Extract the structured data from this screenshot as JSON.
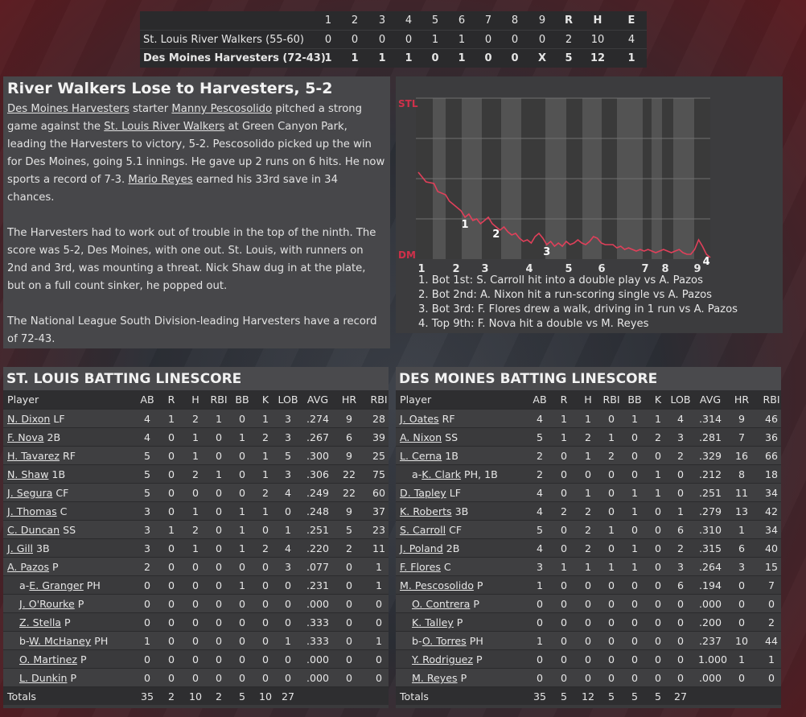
{
  "linescore": {
    "headers": [
      "1",
      "2",
      "3",
      "4",
      "5",
      "6",
      "7",
      "8",
      "9",
      "R",
      "H",
      "E"
    ],
    "teams": [
      {
        "name": "St. Louis River Walkers (55-60)",
        "cells": [
          "0",
          "0",
          "0",
          "0",
          "1",
          "1",
          "0",
          "0",
          "0",
          "2",
          "10",
          "4"
        ]
      },
      {
        "name": "Des Moines Harvesters (72-43)",
        "cells": [
          "1",
          "1",
          "1",
          "1",
          "0",
          "1",
          "0",
          "0",
          "X",
          "5",
          "12",
          "1"
        ]
      }
    ]
  },
  "recap": {
    "headline": "River Walkers Lose to Harvesters, 5-2",
    "p1": [
      {
        "t": "Des Moines Harvesters",
        "link": true
      },
      {
        "t": " starter ",
        "link": false
      },
      {
        "t": "Manny Pescosolido",
        "link": true
      },
      {
        "t": " pitched a strong game against the ",
        "link": false
      },
      {
        "t": "St. Louis River Walkers",
        "link": true
      },
      {
        "t": " at Green Canyon Park, leading the Harvesters to victory, 5-2. Pescosolido picked up the win for Des Moines, going 5.1 innings. He gave up 2 runs on 6 hits. He now sports a record of 7-3. ",
        "link": false
      },
      {
        "t": "Mario Reyes",
        "link": true
      },
      {
        "t": " earned his 33rd save in 34 chances.",
        "link": false
      }
    ],
    "p2": "The Harvesters had to work out of trouble in the top of the ninth. The score was 5-2, Des Moines, with one out. St. Louis, with runners on 2nd and 3rd, was mounting a threat. Nick Shaw dug in at the plate, but on a full count sinker, he popped out.",
    "p3": "The National League South Division-leading Harvesters have a record of 72-43."
  },
  "chart_data": {
    "type": "line",
    "title": "",
    "top_label": "STL",
    "bottom_label": "DM",
    "x_labels": [
      "1",
      "2",
      "3",
      "4",
      "5",
      "6",
      "7",
      "8",
      "9"
    ],
    "ylim": [
      0,
      100
    ],
    "line_color": "#e0405a",
    "points": [
      [
        0,
        54
      ],
      [
        2,
        48
      ],
      [
        4,
        47
      ],
      [
        5,
        42
      ],
      [
        7,
        40
      ],
      [
        8,
        36
      ],
      [
        9,
        34
      ],
      [
        11,
        30
      ],
      [
        12,
        26
      ],
      [
        13,
        28
      ],
      [
        14,
        24
      ],
      [
        15,
        25
      ],
      [
        16,
        22
      ],
      [
        17,
        24
      ],
      [
        18,
        26
      ],
      [
        19,
        22
      ],
      [
        20,
        20
      ],
      [
        21,
        18
      ],
      [
        22,
        20
      ],
      [
        23,
        17
      ],
      [
        24,
        15
      ],
      [
        25,
        16
      ],
      [
        26,
        13
      ],
      [
        27,
        11
      ],
      [
        28,
        12
      ],
      [
        29,
        10
      ],
      [
        30,
        14
      ],
      [
        31,
        16
      ],
      [
        32,
        13
      ],
      [
        33,
        9
      ],
      [
        34,
        11
      ],
      [
        35,
        8
      ],
      [
        36,
        10
      ],
      [
        37,
        8
      ],
      [
        38,
        11
      ],
      [
        39,
        9
      ],
      [
        40,
        10
      ],
      [
        41,
        12
      ],
      [
        42,
        10
      ],
      [
        43,
        9
      ],
      [
        44,
        11
      ],
      [
        45,
        14
      ],
      [
        46,
        13
      ],
      [
        47,
        10
      ],
      [
        48,
        9
      ],
      [
        50,
        9
      ],
      [
        51,
        7
      ],
      [
        52,
        8
      ],
      [
        53,
        6
      ],
      [
        54,
        7
      ],
      [
        55,
        6
      ],
      [
        56,
        5
      ],
      [
        57,
        6
      ],
      [
        58,
        5
      ],
      [
        59,
        6
      ],
      [
        60,
        5
      ],
      [
        61,
        4
      ],
      [
        62,
        5
      ],
      [
        63,
        6
      ],
      [
        64,
        5
      ],
      [
        65,
        4
      ],
      [
        66,
        5
      ],
      [
        67,
        6
      ],
      [
        68,
        4
      ],
      [
        69,
        3
      ],
      [
        70,
        3
      ],
      [
        71,
        6
      ],
      [
        72,
        12
      ],
      [
        73,
        8
      ],
      [
        74,
        3
      ],
      [
        75,
        1
      ]
    ],
    "markers": [
      {
        "label": "1",
        "x": 12
      },
      {
        "label": "2",
        "x": 20
      },
      {
        "label": "3",
        "x": 33
      },
      {
        "label": "4",
        "x": 74
      }
    ],
    "events": [
      "1. Bot 1st: S. Carroll hit into a double play vs A. Pazos",
      "2. Bot 2nd: A. Nixon hit a run-scoring single vs A. Pazos",
      "3. Bot 3rd: F. Flores drew a walk, driving in 1 run vs A. Pazos",
      "4. Top 9th: F. Nova hit a double vs M. Reyes"
    ]
  },
  "stl_batting": {
    "title": "ST. LOUIS BATTING LINESCORE",
    "headers": [
      "Player",
      "AB",
      "R",
      "H",
      "RBI",
      "BB",
      "K",
      "LOB",
      "AVG",
      "HR",
      "RBI"
    ],
    "rows": [
      {
        "prefix": "",
        "name": "N. Dixon",
        "pos": " LF",
        "sub": false,
        "stats": [
          "4",
          "1",
          "2",
          "1",
          "0",
          "1",
          "3",
          ".274",
          "9",
          "28"
        ]
      },
      {
        "prefix": "",
        "name": "F. Nova",
        "pos": " 2B",
        "sub": false,
        "stats": [
          "4",
          "0",
          "1",
          "0",
          "1",
          "2",
          "3",
          ".267",
          "6",
          "39"
        ]
      },
      {
        "prefix": "",
        "name": "H. Tavarez",
        "pos": " RF",
        "sub": false,
        "stats": [
          "5",
          "0",
          "1",
          "0",
          "0",
          "1",
          "5",
          ".300",
          "9",
          "25"
        ]
      },
      {
        "prefix": "",
        "name": "N. Shaw",
        "pos": " 1B",
        "sub": false,
        "stats": [
          "5",
          "0",
          "2",
          "1",
          "0",
          "1",
          "3",
          ".306",
          "22",
          "75"
        ]
      },
      {
        "prefix": "",
        "name": "J. Segura",
        "pos": " CF",
        "sub": false,
        "stats": [
          "5",
          "0",
          "0",
          "0",
          "0",
          "2",
          "4",
          ".249",
          "22",
          "60"
        ]
      },
      {
        "prefix": "",
        "name": "J. Thomas",
        "pos": " C",
        "sub": false,
        "stats": [
          "3",
          "0",
          "1",
          "0",
          "1",
          "1",
          "0",
          ".248",
          "9",
          "37"
        ]
      },
      {
        "prefix": "",
        "name": "C. Duncan",
        "pos": " SS",
        "sub": false,
        "stats": [
          "3",
          "1",
          "2",
          "0",
          "1",
          "0",
          "1",
          ".251",
          "5",
          "23"
        ]
      },
      {
        "prefix": "",
        "name": "J. Gill",
        "pos": " 3B",
        "sub": false,
        "stats": [
          "3",
          "0",
          "1",
          "0",
          "1",
          "2",
          "4",
          ".220",
          "2",
          "11"
        ]
      },
      {
        "prefix": "",
        "name": "A. Pazos",
        "pos": " P",
        "sub": false,
        "stats": [
          "2",
          "0",
          "0",
          "0",
          "0",
          "0",
          "3",
          ".077",
          "0",
          "1"
        ]
      },
      {
        "prefix": "a-",
        "name": "E. Granger",
        "pos": " PH",
        "sub": true,
        "stats": [
          "0",
          "0",
          "0",
          "0",
          "1",
          "0",
          "0",
          ".231",
          "0",
          "1"
        ]
      },
      {
        "prefix": "",
        "name": "J. O'Rourke",
        "pos": " P",
        "sub": true,
        "stats": [
          "0",
          "0",
          "0",
          "0",
          "0",
          "0",
          "0",
          ".000",
          "0",
          "0"
        ]
      },
      {
        "prefix": "",
        "name": "Z. Stella",
        "pos": " P",
        "sub": true,
        "stats": [
          "0",
          "0",
          "0",
          "0",
          "0",
          "0",
          "0",
          ".333",
          "0",
          "0"
        ]
      },
      {
        "prefix": "b-",
        "name": "W. McHaney",
        "pos": " PH",
        "sub": true,
        "stats": [
          "1",
          "0",
          "0",
          "0",
          "0",
          "0",
          "1",
          ".333",
          "0",
          "1"
        ]
      },
      {
        "prefix": "",
        "name": "O. Martinez",
        "pos": " P",
        "sub": true,
        "stats": [
          "0",
          "0",
          "0",
          "0",
          "0",
          "0",
          "0",
          ".000",
          "0",
          "0"
        ]
      },
      {
        "prefix": "",
        "name": "L. Dunkin",
        "pos": " P",
        "sub": true,
        "stats": [
          "0",
          "0",
          "0",
          "0",
          "0",
          "0",
          "0",
          ".000",
          "0",
          "0"
        ]
      }
    ],
    "totals_label": "Totals",
    "totals": [
      "35",
      "2",
      "10",
      "2",
      "5",
      "10",
      "27"
    ]
  },
  "dm_batting": {
    "title": "DES MOINES BATTING LINESCORE",
    "headers": [
      "Player",
      "AB",
      "R",
      "H",
      "RBI",
      "BB",
      "K",
      "LOB",
      "AVG",
      "HR",
      "RBI"
    ],
    "rows": [
      {
        "prefix": "",
        "name": "J. Oates",
        "pos": " RF",
        "sub": false,
        "stats": [
          "4",
          "1",
          "1",
          "0",
          "1",
          "1",
          "4",
          ".314",
          "9",
          "46"
        ]
      },
      {
        "prefix": "",
        "name": "A. Nixon",
        "pos": " SS",
        "sub": false,
        "stats": [
          "5",
          "1",
          "2",
          "1",
          "0",
          "2",
          "3",
          ".281",
          "7",
          "36"
        ]
      },
      {
        "prefix": "",
        "name": "L. Cerna",
        "pos": " 1B",
        "sub": false,
        "stats": [
          "2",
          "0",
          "1",
          "2",
          "0",
          "0",
          "2",
          ".329",
          "16",
          "66"
        ]
      },
      {
        "prefix": "a-",
        "name": "K. Clark",
        "pos": " PH, 1B",
        "sub": true,
        "stats": [
          "2",
          "0",
          "0",
          "0",
          "0",
          "1",
          "0",
          ".212",
          "8",
          "18"
        ]
      },
      {
        "prefix": "",
        "name": "D. Tapley",
        "pos": " LF",
        "sub": false,
        "stats": [
          "4",
          "0",
          "1",
          "0",
          "1",
          "1",
          "0",
          ".251",
          "11",
          "34"
        ]
      },
      {
        "prefix": "",
        "name": "K. Roberts",
        "pos": " 3B",
        "sub": false,
        "stats": [
          "4",
          "2",
          "2",
          "0",
          "1",
          "0",
          "1",
          ".279",
          "13",
          "42"
        ]
      },
      {
        "prefix": "",
        "name": "S. Carroll",
        "pos": " CF",
        "sub": false,
        "stats": [
          "5",
          "0",
          "2",
          "1",
          "0",
          "0",
          "6",
          ".310",
          "1",
          "34"
        ]
      },
      {
        "prefix": "",
        "name": "J. Poland",
        "pos": " 2B",
        "sub": false,
        "stats": [
          "4",
          "0",
          "2",
          "0",
          "1",
          "0",
          "2",
          ".315",
          "6",
          "40"
        ]
      },
      {
        "prefix": "",
        "name": "F. Flores",
        "pos": " C",
        "sub": false,
        "stats": [
          "3",
          "1",
          "1",
          "1",
          "1",
          "0",
          "3",
          ".264",
          "3",
          "15"
        ]
      },
      {
        "prefix": "",
        "name": "M. Pescosolido",
        "pos": " P",
        "sub": false,
        "stats": [
          "1",
          "0",
          "0",
          "0",
          "0",
          "0",
          "6",
          ".194",
          "0",
          "7"
        ]
      },
      {
        "prefix": "",
        "name": "O. Contrera",
        "pos": " P",
        "sub": true,
        "stats": [
          "0",
          "0",
          "0",
          "0",
          "0",
          "0",
          "0",
          ".000",
          "0",
          "0"
        ]
      },
      {
        "prefix": "",
        "name": "K. Talley",
        "pos": " P",
        "sub": true,
        "stats": [
          "0",
          "0",
          "0",
          "0",
          "0",
          "0",
          "0",
          ".200",
          "0",
          "2"
        ]
      },
      {
        "prefix": "b-",
        "name": "O. Torres",
        "pos": " PH",
        "sub": true,
        "stats": [
          "1",
          "0",
          "0",
          "0",
          "0",
          "0",
          "0",
          ".237",
          "10",
          "44"
        ]
      },
      {
        "prefix": "",
        "name": "Y. Rodriguez",
        "pos": " P",
        "sub": true,
        "stats": [
          "0",
          "0",
          "0",
          "0",
          "0",
          "0",
          "0",
          "1.000",
          "1",
          "1"
        ]
      },
      {
        "prefix": "",
        "name": "M. Reyes",
        "pos": " P",
        "sub": true,
        "stats": [
          "0",
          "0",
          "0",
          "0",
          "0",
          "0",
          "0",
          ".000",
          "0",
          "0"
        ]
      }
    ],
    "totals_label": "Totals",
    "totals": [
      "35",
      "5",
      "12",
      "5",
      "5",
      "5",
      "27"
    ]
  }
}
